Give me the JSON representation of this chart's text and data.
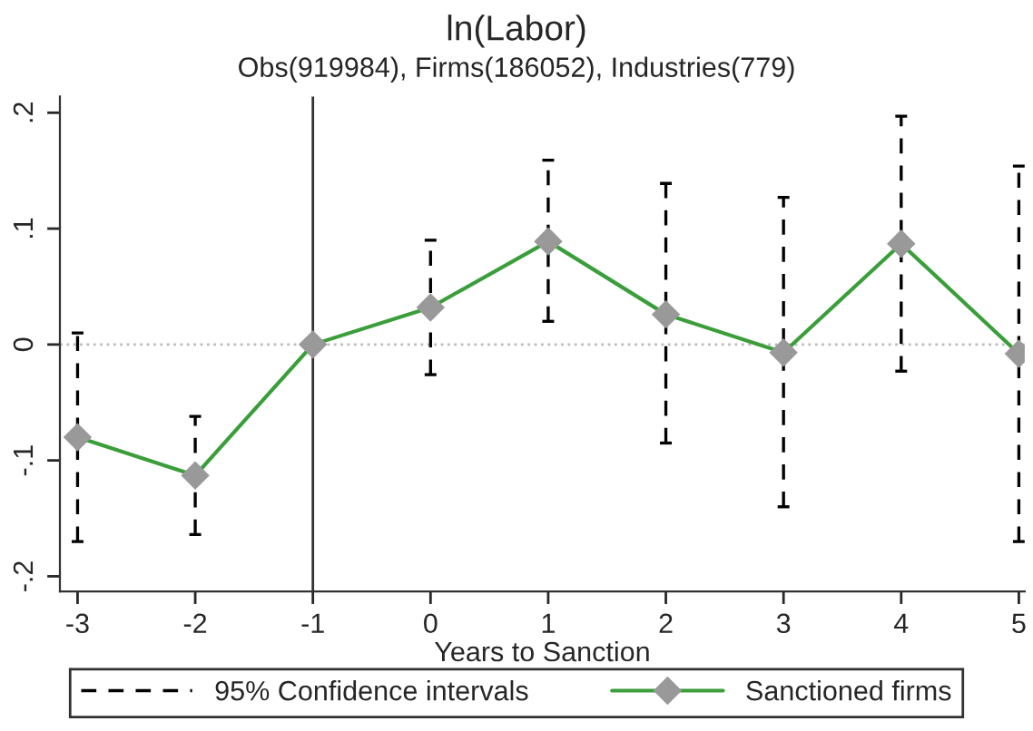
{
  "chart_data": {
    "type": "line",
    "title": "ln(Labor)",
    "subtitle": "Obs(919984), Firms(186052), Industries(779)",
    "xlabel": "Years to Sanction",
    "x": [
      -3,
      -2,
      -1,
      0,
      1,
      2,
      3,
      4,
      5
    ],
    "series": [
      {
        "name": "Sanctioned firms",
        "color": "#3a9e3a",
        "marker": "diamond",
        "values": [
          -0.08,
          -0.113,
          0,
          0.032,
          0.089,
          0.026,
          -0.007,
          0.087,
          -0.008
        ],
        "errors": [
          [
            -0.17,
            0.01
          ],
          [
            -0.164,
            -0.062
          ],
          null,
          [
            -0.026,
            0.09
          ],
          [
            0.02,
            0.159
          ],
          [
            -0.085,
            0.139
          ],
          [
            -0.14,
            0.127
          ],
          [
            -0.023,
            0.197
          ],
          [
            -0.17,
            0.154
          ]
        ]
      }
    ],
    "annotations": [
      "95% Confidence intervals"
    ],
    "xlim": [
      -3.15,
      5.05
    ],
    "ylim": [
      -0.213,
      0.214
    ],
    "xticks": [
      -3,
      -2,
      -1,
      0,
      1,
      2,
      3,
      4,
      5
    ],
    "yticks": [
      {
        "value": -0.2,
        "label": "-.2"
      },
      {
        "value": -0.1,
        "label": "-.1"
      },
      0,
      {
        "value": 0.1,
        "label": ".1"
      },
      {
        "value": 0.2,
        "label": ".2"
      }
    ],
    "ref_lines": [
      {
        "axis": "y",
        "value": 0,
        "color": "#bbbbbb",
        "line_style": "dotted"
      },
      {
        "axis": "x",
        "value": -1,
        "color": "#333333",
        "line_style": "solid"
      }
    ],
    "grid": false,
    "legend": "bottom"
  }
}
